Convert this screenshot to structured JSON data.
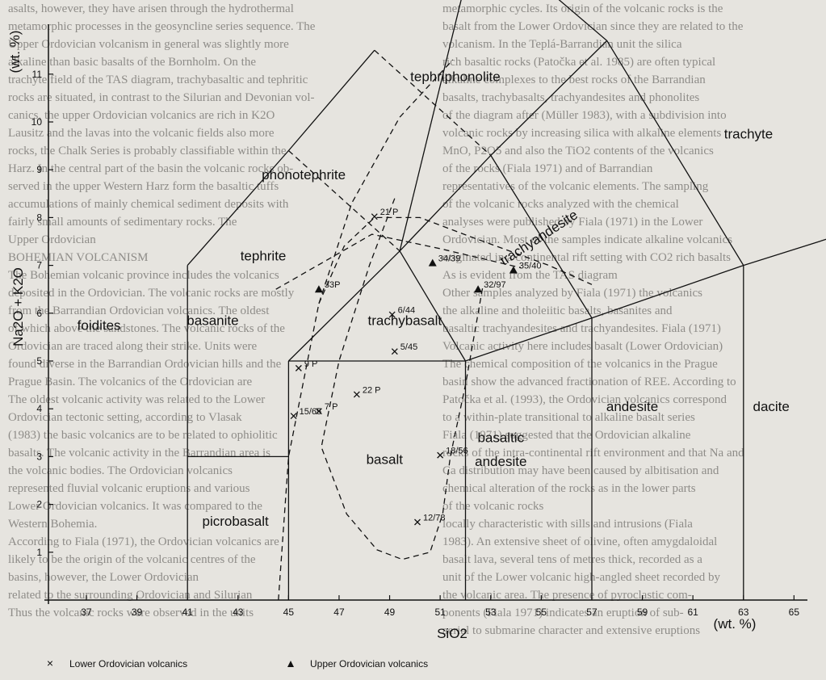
{
  "background_text": {
    "left": [
      "asalts, however, they have arisen through the hydrothermal",
      "metamorphic processes in the geosyncline series sequence. The",
      "Upper Ordovician volcanism in general was slightly more",
      "alkaline than basic basalts of the Bornholm. On the",
      "trachyte field of the TAS diagram, trachybasaltic and tephritic",
      "rocks are situated, in contrast to the Silurian and Devonian vol-",
      "canics, the upper Ordovician volcanics are rich in K2O",
      "Lausitz and the lavas into the volcanic fields also more",
      "rocks, the Chalk Series is probably classifiable within the",
      "Harz. In the central part of the basin the volcanic rocks ob-",
      "served in the upper Western Harz form the basaltic tuffs",
      "accumulations of mainly chemical sediment deposits with",
      "fairly small amounts of sedimentary rocks. The",
      "Upper Ordovician",
      "BOHEMIAN VOLCANISM",
      "The Bohemian volcanic province includes the volcanics",
      "deposited in the Ordovician. The volcanic rocks are mostly",
      "from the Barrandian Ordovician volcanics. The oldest",
      "of which above the sandstones. The volcanic rocks of the",
      "Ordovician are traced along their strike. Units were",
      "found diverse in the Barrandian Ordovician hills and the",
      "Prague Basin. The volcanics of the Ordovician are",
      "The oldest volcanic activity was related to the Lower",
      "Ordovician tectonic setting, according to Vlasak",
      "(1983) the basic volcanics are to be related to ophiolitic",
      "basalts. The volcanic activity in the Barrandian area is",
      "the volcanic bodies. The Ordovician volcanics",
      "represented fluvial volcanic eruptions and various",
      "Lower Ordovician volcanics. It was compared to the",
      "Western Bohemia.",
      "According to Fiala (1971), the Ordovician volcanics are",
      "likely to be the origin of the volcanic centres of the",
      "basins, however, the Lower Ordovician",
      "related to the surrounding Ordovician and Silurian",
      "Thus the volcanic rocks were observed in the units"
    ],
    "right": [
      "metamorphic cycles. Its origin of the volcanic rocks is the",
      "basalt from the Lower Ordovician since they are related to the",
      "volcanism. In the Teplá-Barrandian unit the silica",
      "rich basaltic rocks (Patočka et al. 1985) are often typical",
      "alkaline complexes to the best rocks of the Barrandian",
      "basalts, trachybasalts, trachyandesites and phonolites",
      "of the diagram after (Müller 1983), with a subdivision into",
      "volcanic rocks by increasing silica with alkaline elements",
      "MnO, P2O5 and also the TiO2 contents of the volcanics",
      "of the rocks (Fiala 1971) and of Barrandian",
      "representatives of the volcanic elements. The sampling",
      "of the volcanic rocks analyzed with the chemical",
      "analyses were published by Fiala (1971) in the Lower",
      "Ordovician. Most of the samples indicate alkaline volcanics",
      "originated in a continental rift setting with CO2 rich basalts",
      "As is evident from the TAS diagram",
      "Other samples analyzed by Fiala (1971) the volcanics",
      "the alkaline and tholeiitic basalts, basanites and",
      "basaltic trachyandesites and trachyandesites. Fiala (1971)",
      "Volcanic activity here includes basalt (Lower Ordovician)",
      "The chemical composition of the volcanics in the Prague",
      "basin show the advanced fractionation of REE. According to",
      "Patočka et al. (1993), the Ordovician volcanics correspond",
      "to a within-plate transitional to alkaline basalt series",
      "Fiala (1971) suggested that the Ordovician alkaline",
      "rocks of the intra-continental rift environment and that Na and",
      "Ca distribution may have been caused by albitisation and",
      "chemical alteration of the rocks as in the lower parts",
      "of the volcanic rocks",
      "locally characteristic with sills and intrusions (Fiala",
      "1983). An extensive sheet of olivine, often amygdaloidal",
      "basalt lava, several tens of metres thick, recorded as a",
      "unit of the Lower volcanic high-angled sheet recorded by",
      "the volcanic area. The presence of pyroclastic com-",
      "ponents (Fiala 1971) indicates an eruption of sub-",
      "aerial to submarine character and extensive eruptions"
    ]
  },
  "chart_data": {
    "type": "scatter",
    "title": "",
    "xlabel": "SiO2",
    "xunit": "(wt. %)",
    "ylabel": "Na2O + K2O",
    "yunit": "(wt. %)",
    "xlim": [
      35.5,
      65.7
    ],
    "ylim": [
      0,
      11.3
    ],
    "grid": false,
    "x_ticks": [
      37,
      39,
      41,
      43,
      45,
      47,
      49,
      51,
      53,
      55,
      57,
      59,
      61,
      63,
      65
    ],
    "y_ticks": [
      1,
      2,
      3,
      4,
      5,
      6,
      7,
      8,
      9,
      10,
      11
    ],
    "fields": [
      {
        "name": "tephriphonolite",
        "x": 51.6,
        "y": 10.85
      },
      {
        "name": "phonotephrite",
        "x": 45.6,
        "y": 8.8
      },
      {
        "name": "trachyte",
        "x": 63.2,
        "y": 9.65
      },
      {
        "name": "trachyandesite",
        "x": 55.0,
        "y": 7.5,
        "angle": -33
      },
      {
        "name": "tephrite",
        "x": 44.0,
        "y": 7.1
      },
      {
        "name": "foidites",
        "x": 37.5,
        "y": 5.65
      },
      {
        "name": "basanite",
        "x": 42.0,
        "y": 5.75
      },
      {
        "name": "trachybasalt",
        "x": 49.6,
        "y": 5.75
      },
      {
        "name": "andesite",
        "x": 58.6,
        "y": 3.95
      },
      {
        "name": "dacite",
        "x": 64.1,
        "y": 3.95
      },
      {
        "name": "basaltic",
        "x": 53.4,
        "y": 3.3
      },
      {
        "name": "andesite",
        "x": 53.4,
        "y": 2.8
      },
      {
        "name": "basalt",
        "x": 48.8,
        "y": 2.85
      },
      {
        "name": "picrobasalt",
        "x": 42.9,
        "y": 1.55
      }
    ],
    "series": [
      {
        "name": "Lower Ordovician volcanics",
        "marker": "x",
        "points": [
          {
            "x": 45.4,
            "y": 4.85,
            "label": "9 P"
          },
          {
            "x": 46.2,
            "y": 3.95,
            "label": "7 P"
          },
          {
            "x": 45.2,
            "y": 3.85,
            "label": "15/65"
          },
          {
            "x": 47.7,
            "y": 4.3,
            "label": "22 P"
          },
          {
            "x": 49.1,
            "y": 5.97,
            "label": "6/44"
          },
          {
            "x": 49.2,
            "y": 5.2,
            "label": "5/45"
          },
          {
            "x": 51.0,
            "y": 3.03,
            "label": "18/56"
          },
          {
            "x": 50.1,
            "y": 1.63,
            "label": "12/78"
          },
          {
            "x": 48.4,
            "y": 8.02,
            "label": "21 P"
          }
        ]
      },
      {
        "name": "Upper Ordovician volcanics",
        "marker": "triangle",
        "points": [
          {
            "x": 46.2,
            "y": 6.5,
            "label": "33P"
          },
          {
            "x": 50.7,
            "y": 7.05,
            "label": "34/39"
          },
          {
            "x": 53.9,
            "y": 6.9,
            "label": "35/40"
          },
          {
            "x": 52.5,
            "y": 6.5,
            "label": "32/97"
          }
        ]
      }
    ]
  }
}
